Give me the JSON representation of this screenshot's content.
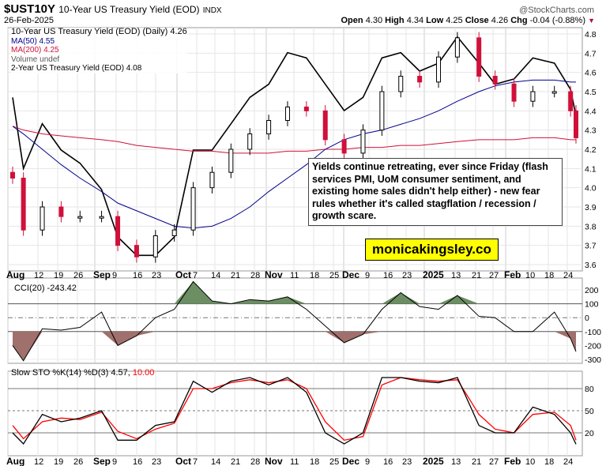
{
  "header": {
    "symbol": "$UST10Y",
    "name": "10-Year US Treasury Yield (EOD)",
    "exchange": "INDX",
    "date": "26-Feb-2025",
    "source": "@StockCharts.com",
    "open_label": "Open",
    "open": "4.30",
    "high_label": "High",
    "high": "4.34",
    "low_label": "Low",
    "low": "4.25",
    "close_label": "Close",
    "close": "4.26",
    "chg_label": "Chg",
    "chg": "-0.04 (-0.88%)"
  },
  "legend": {
    "main": "10-Year US Treasury Yield (EOD) (Daily) 4.26",
    "ma50": "MA(50) 4.55",
    "ma200": "MA(200) 4.25",
    "volume": "Volume undef",
    "two_year": "2-Year US Treasury Yield (EOD) 4.08",
    "cci": "CCI(20) -243.42",
    "sto": "Slow STO %K(14) %D(3) 4.57,",
    "sto_d": "10.00"
  },
  "annotation": "Yields continue retreating, ever since Friday (flash services PMI, UoM consumer sentiment, and existing home sales didn't help either) - new fear rules whether it's called stagflation / recession / growth scare.",
  "watermark": "monicakingsley.co",
  "colors": {
    "up": "#ffffff",
    "down": "#d0103a",
    "ma50": "#00008b",
    "ma200": "#d0103a",
    "cci_pos": "#6b8e63",
    "cci_neg": "#a0706c",
    "sto_d": "#ff0000"
  },
  "x_ticks": [
    "Aug",
    "12",
    "19",
    "26",
    "Sep",
    "9",
    "16",
    "23",
    "Oct",
    "7",
    "14",
    "21",
    "28",
    "Nov",
    "11",
    "18",
    "25",
    "Dec",
    "9",
    "16",
    "23",
    "2025",
    "13",
    "21",
    "27",
    "Feb",
    "10",
    "18",
    "24"
  ],
  "chart_data": [
    {
      "type": "candlestick",
      "title": "10-Year US Treasury Yield (EOD)",
      "ylim": [
        3.6,
        4.8
      ],
      "y_ticks": [
        3.6,
        3.7,
        3.8,
        3.9,
        4.0,
        4.1,
        4.2,
        4.3,
        4.4,
        4.5,
        4.6,
        4.7,
        4.8
      ],
      "dates": [
        "2024-08-01",
        "2024-08-05",
        "2024-08-12",
        "2024-08-19",
        "2024-08-26",
        "2024-09-03",
        "2024-09-09",
        "2024-09-16",
        "2024-09-23",
        "2024-09-30",
        "2024-10-07",
        "2024-10-14",
        "2024-10-21",
        "2024-10-28",
        "2024-11-04",
        "2024-11-11",
        "2024-11-18",
        "2024-11-25",
        "2024-12-02",
        "2024-12-09",
        "2024-12-16",
        "2024-12-23",
        "2024-12-30",
        "2025-01-06",
        "2025-01-13",
        "2025-01-21",
        "2025-01-27",
        "2025-02-03",
        "2025-02-10",
        "2025-02-18",
        "2025-02-24",
        "2025-02-26"
      ],
      "series": [
        {
          "name": "10-Year US Treasury Yield (EOD)",
          "values": [
            4.05,
            3.78,
            3.9,
            3.85,
            3.85,
            3.85,
            3.7,
            3.64,
            3.75,
            3.78,
            4.0,
            4.08,
            4.2,
            4.28,
            4.35,
            4.42,
            4.4,
            4.25,
            4.18,
            4.3,
            4.5,
            4.58,
            4.55,
            4.68,
            4.78,
            4.58,
            4.54,
            4.45,
            4.5,
            4.5,
            4.4,
            4.26
          ]
        },
        {
          "name": "MA(50)",
          "values": [
            4.32,
            4.28,
            4.2,
            4.12,
            4.05,
            3.98,
            3.92,
            3.88,
            3.84,
            3.8,
            3.79,
            3.8,
            3.84,
            3.9,
            3.98,
            4.05,
            4.12,
            4.2,
            4.25,
            4.28,
            4.3,
            4.33,
            4.36,
            4.4,
            4.45,
            4.5,
            4.53,
            4.55,
            4.56,
            4.56,
            4.55,
            4.55
          ]
        },
        {
          "name": "MA(200)",
          "values": [
            4.32,
            4.3,
            4.28,
            4.27,
            4.26,
            4.25,
            4.24,
            4.22,
            4.21,
            4.2,
            4.19,
            4.19,
            4.18,
            4.18,
            4.18,
            4.19,
            4.19,
            4.2,
            4.2,
            4.21,
            4.21,
            4.22,
            4.22,
            4.23,
            4.24,
            4.25,
            4.25,
            4.25,
            4.26,
            4.26,
            4.25,
            4.25
          ]
        },
        {
          "name": "2-Year US Treasury Yield (EOD)",
          "values": [
            4.15,
            3.88,
            4.05,
            3.95,
            3.9,
            3.8,
            3.62,
            3.55,
            3.55,
            3.62,
            3.95,
            3.95,
            4.05,
            4.15,
            4.2,
            4.32,
            4.3,
            4.2,
            4.1,
            4.15,
            4.3,
            4.32,
            4.25,
            4.28,
            4.38,
            4.28,
            4.2,
            4.22,
            4.3,
            4.28,
            4.18,
            4.08
          ]
        }
      ]
    },
    {
      "type": "area",
      "title": "CCI(20)",
      "ylim": [
        -300,
        200
      ],
      "y_ticks": [
        200,
        100,
        0,
        -100,
        -200,
        -300
      ],
      "values": [
        -200,
        -310,
        -80,
        -90,
        -70,
        40,
        -200,
        -130,
        0,
        60,
        260,
        120,
        100,
        130,
        120,
        150,
        60,
        -60,
        -180,
        -120,
        60,
        180,
        80,
        60,
        160,
        10,
        0,
        -100,
        -100,
        40,
        -150,
        -243.42
      ]
    },
    {
      "type": "line",
      "title": "Slow STO %K(14) %D(3)",
      "ylim": [
        0,
        100
      ],
      "y_ticks": [
        80,
        50,
        20
      ],
      "series": [
        {
          "name": "%K",
          "values": [
            20,
            5,
            45,
            35,
            40,
            50,
            10,
            10,
            30,
            35,
            90,
            75,
            90,
            95,
            85,
            95,
            75,
            20,
            5,
            20,
            95,
            95,
            90,
            88,
            95,
            30,
            20,
            20,
            55,
            45,
            20,
            4.57
          ]
        },
        {
          "name": "%D",
          "values": [
            30,
            12,
            35,
            40,
            38,
            48,
            22,
            12,
            25,
            33,
            80,
            80,
            88,
            92,
            88,
            92,
            80,
            35,
            10,
            15,
            85,
            95,
            92,
            90,
            92,
            45,
            25,
            20,
            45,
            48,
            30,
            10
          ]
        }
      ]
    }
  ]
}
